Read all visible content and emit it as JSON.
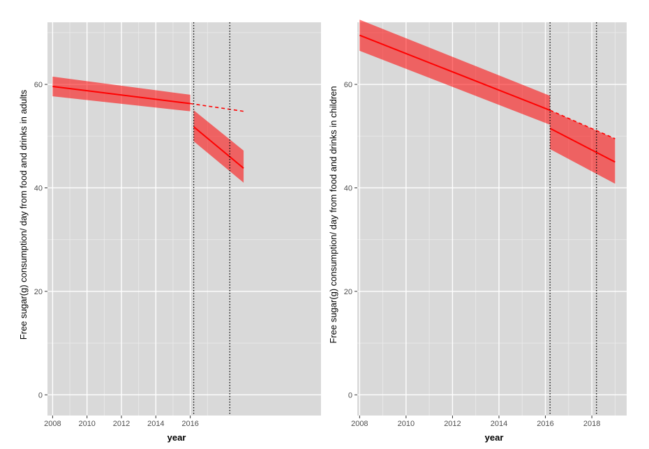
{
  "chart_data": [
    {
      "type": "line",
      "xlabel": "year",
      "ylabel": "Free sugar(g) consumption/ day from food and drinks in adults",
      "xlim": [
        2007.7,
        2023.6
      ],
      "ylim": [
        -4,
        72
      ],
      "x_ticks": [
        2008,
        2010,
        2012,
        2014,
        2016
      ],
      "x_tick_labels": [
        "2008",
        "2010",
        "2012",
        "2014",
        "2016"
      ],
      "y_ticks": [
        0,
        20,
        40,
        60
      ],
      "y_tick_labels": [
        "0",
        "20",
        "40",
        "60"
      ],
      "grid": true,
      "vlines": [
        2016.2,
        2018.3
      ],
      "series": [
        {
          "style": "fit-pre",
          "x": [
            2008,
            2016
          ],
          "y": [
            59.6,
            56.3
          ],
          "upper": [
            61.5,
            58.0
          ],
          "lower": [
            57.7,
            54.8
          ],
          "color": "#ff0000"
        },
        {
          "style": "fit-post",
          "x": [
            2016.2,
            2019.1
          ],
          "y": [
            51.8,
            43.8
          ],
          "upper": [
            55.0,
            47.2
          ],
          "lower": [
            49.0,
            41.0
          ],
          "color": "#ff0000"
        },
        {
          "style": "counterfactual",
          "x": [
            2016,
            2019.1
          ],
          "y": [
            56.3,
            54.8
          ],
          "color": "#ff0000"
        }
      ]
    },
    {
      "type": "line",
      "xlabel": "year",
      "ylabel": "Free sugar(g) consumption/ day from food and drinks in children",
      "xlim": [
        2007.9,
        2019.5
      ],
      "ylim": [
        -4,
        72
      ],
      "x_ticks": [
        2008,
        2010,
        2012,
        2014,
        2016,
        2018
      ],
      "x_tick_labels": [
        "2008",
        "2010",
        "2012",
        "2014",
        "2016",
        "2018"
      ],
      "y_ticks": [
        0,
        20,
        40,
        60
      ],
      "y_tick_labels": [
        "0",
        "20",
        "40",
        "60"
      ],
      "grid": true,
      "vlines": [
        2016.2,
        2018.2
      ],
      "series": [
        {
          "style": "fit-pre",
          "x": [
            2008,
            2016.2
          ],
          "y": [
            69.5,
            55.0
          ],
          "upper": [
            72.5,
            57.8
          ],
          "lower": [
            66.5,
            52.2
          ],
          "color": "#ff0000"
        },
        {
          "style": "fit-post",
          "x": [
            2016.2,
            2019
          ],
          "y": [
            51.5,
            45.0
          ],
          "upper": [
            55.0,
            49.5
          ],
          "lower": [
            47.5,
            40.8
          ],
          "color": "#ff0000"
        },
        {
          "style": "counterfactual",
          "x": [
            2016.2,
            2019
          ],
          "y": [
            55.0,
            49.5
          ],
          "color": "#ff0000"
        }
      ]
    }
  ]
}
